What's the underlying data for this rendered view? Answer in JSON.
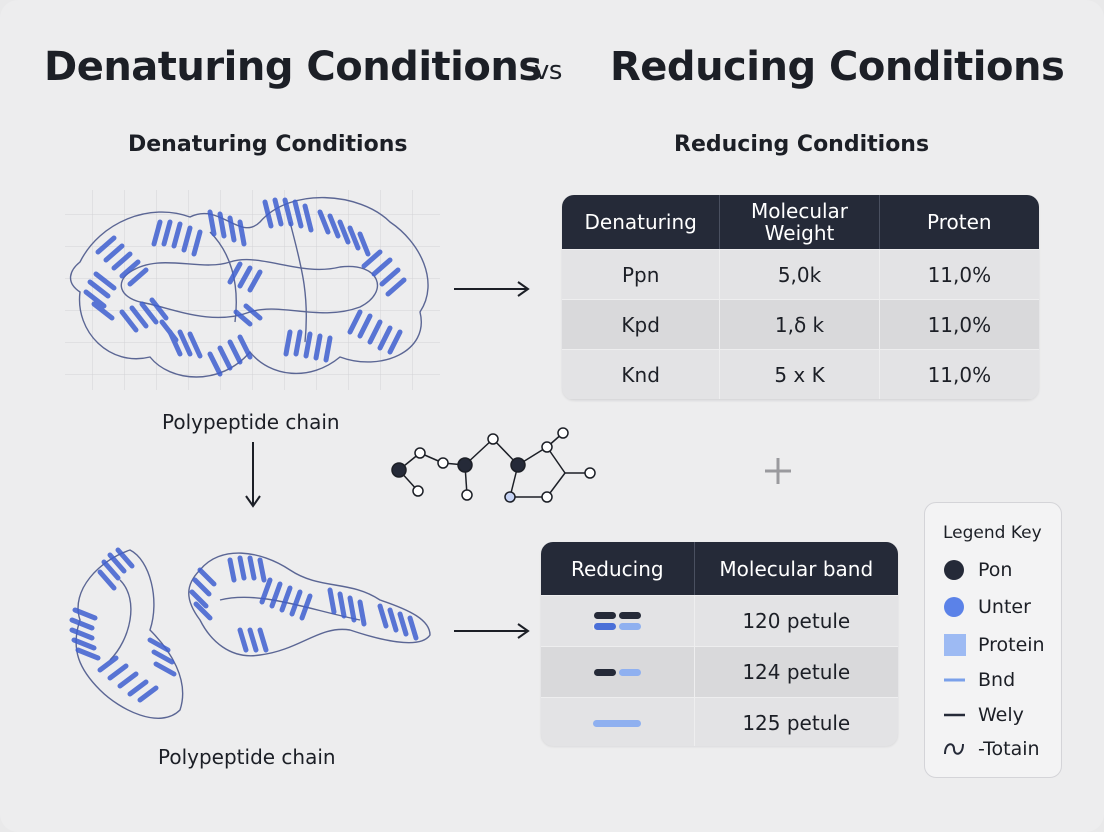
{
  "title": {
    "left": "Denaturing Conditions",
    "vs": "vs",
    "right": "Reducing Conditions"
  },
  "left_panel": {
    "heading": "Denaturing Conditions",
    "caption_top": "Polypeptide chain",
    "caption_bottom": "Polypeptide chain"
  },
  "right_panel": {
    "heading": "Reducing Conditions"
  },
  "table_denaturing": {
    "headers": [
      "Denaturing",
      "Molecular Weight",
      "Proten"
    ],
    "rows": [
      [
        "Ppn",
        "5,0k",
        "11,0%"
      ],
      [
        "Kpd",
        "1,δ k",
        "11,0%"
      ],
      [
        "Knd",
        "5 x K",
        "11,0%"
      ]
    ]
  },
  "table_reducing": {
    "headers": [
      "Reducing",
      "Molecular band"
    ],
    "rows": [
      {
        "band": "two-line dark/blue",
        "value": "120 petule"
      },
      {
        "band": "single dark/blue",
        "value": "124 petule"
      },
      {
        "band": "single light",
        "value": "125 petule"
      }
    ]
  },
  "legend": {
    "title": "Legend Key",
    "items": [
      {
        "icon": "dark-circle-icon",
        "label": "Pon"
      },
      {
        "icon": "blue-circle-icon",
        "label": "Unter"
      },
      {
        "icon": "light-square-icon",
        "label": "Protein"
      },
      {
        "icon": "light-line-icon",
        "label": "Bnd"
      },
      {
        "icon": "dark-line-icon",
        "label": "Wely"
      },
      {
        "icon": "wave-icon",
        "label": "-Totain"
      }
    ]
  },
  "colors": {
    "dark": "#252a38",
    "blue": "#4a6fd8",
    "light_blue": "#8fb0f0",
    "background": "#ededee"
  }
}
